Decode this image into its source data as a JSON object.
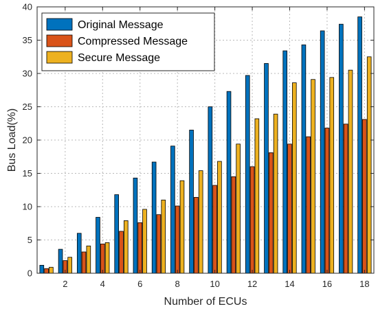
{
  "chart_data": {
    "type": "bar",
    "xlabel": "Number of ECUs",
    "ylabel": "Bus Load(%)",
    "ylim": [
      0,
      40
    ],
    "yticks": [
      0,
      5,
      10,
      15,
      20,
      25,
      30,
      35,
      40
    ],
    "xticks": [
      2,
      4,
      6,
      8,
      10,
      12,
      14,
      16,
      18
    ],
    "grid": true,
    "legend_position": "top-left",
    "categories": [
      1,
      2,
      3,
      4,
      5,
      6,
      7,
      8,
      9,
      10,
      11,
      12,
      13,
      14,
      15,
      16,
      17,
      18
    ],
    "series": [
      {
        "name": "Original Message",
        "color": "#0072BD",
        "values": [
          1.2,
          3.6,
          6.0,
          8.4,
          11.8,
          14.3,
          16.7,
          19.1,
          21.5,
          25.0,
          27.3,
          29.7,
          31.5,
          33.4,
          34.3,
          36.4,
          37.4,
          38.5
        ]
      },
      {
        "name": "Compressed Message",
        "color": "#D95319",
        "values": [
          0.7,
          1.9,
          3.2,
          4.4,
          6.3,
          7.6,
          8.8,
          10.1,
          11.4,
          13.2,
          14.5,
          16.0,
          18.1,
          19.4,
          20.5,
          21.8,
          22.4,
          23.1
        ]
      },
      {
        "name": "Secure Message",
        "color": "#EDB120",
        "values": [
          0.9,
          2.4,
          4.1,
          4.6,
          7.9,
          9.6,
          11.0,
          13.9,
          15.4,
          16.8,
          19.4,
          23.2,
          23.9,
          28.6,
          29.1,
          29.4,
          30.5,
          32.5
        ]
      }
    ]
  }
}
